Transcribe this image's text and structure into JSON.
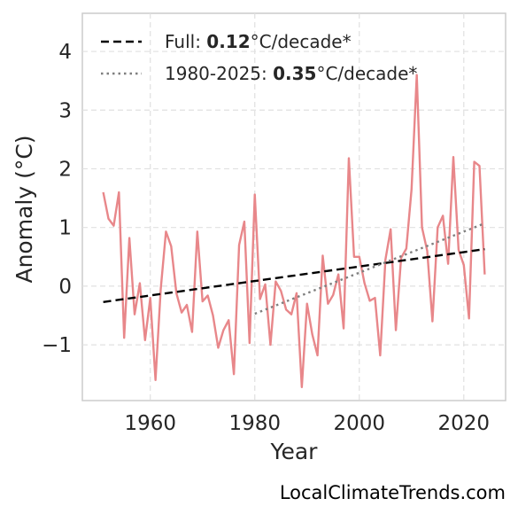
{
  "chart_data": {
    "type": "line",
    "xlabel": "Year",
    "ylabel": "Anomaly (°C)",
    "xlim": [
      1947,
      2028
    ],
    "ylim": [
      -1.95,
      4.65
    ],
    "xticks": [
      1960,
      1980,
      2000,
      2020
    ],
    "yticks": [
      4,
      3,
      2,
      1,
      0,
      -1
    ],
    "ytick_labels": [
      "4",
      "3",
      "2",
      "1",
      "0",
      "−1"
    ],
    "grid": true,
    "legend_position": "top-left",
    "series": [
      {
        "color": "#e8878a",
        "x": [
          1951,
          1952,
          1953,
          1954,
          1955,
          1956,
          1957,
          1958,
          1959,
          1960,
          1961,
          1962,
          1963,
          1964,
          1965,
          1966,
          1967,
          1968,
          1969,
          1970,
          1971,
          1972,
          1973,
          1974,
          1975,
          1976,
          1977,
          1978,
          1979,
          1980,
          1981,
          1982,
          1983,
          1984,
          1985,
          1986,
          1987,
          1988,
          1989,
          1990,
          1991,
          1992,
          1993,
          1994,
          1995,
          1996,
          1997,
          1998,
          1999,
          2000,
          2001,
          2002,
          2003,
          2004,
          2005,
          2006,
          2007,
          2008,
          2009,
          2010,
          2011,
          2012,
          2013,
          2014,
          2015,
          2016,
          2017,
          2018,
          2019,
          2020,
          2021,
          2022,
          2023,
          2024
        ],
        "y": [
          1.6,
          1.15,
          1.03,
          1.6,
          -0.88,
          0.82,
          -0.48,
          0.05,
          -0.92,
          -0.2,
          -1.6,
          -0.05,
          0.93,
          0.68,
          -0.12,
          -0.45,
          -0.32,
          -0.78,
          0.93,
          -0.26,
          -0.16,
          -0.5,
          -1.05,
          -0.75,
          -0.58,
          -1.5,
          0.7,
          1.1,
          -0.97,
          1.56,
          -0.22,
          0.03,
          -1.0,
          0.08,
          -0.08,
          -0.4,
          -0.48,
          -0.12,
          -1.72,
          -0.3,
          -0.82,
          -1.18,
          0.52,
          -0.3,
          -0.15,
          0.2,
          -0.72,
          2.18,
          0.5,
          0.5,
          0.05,
          -0.25,
          -0.2,
          -1.18,
          0.45,
          0.97,
          -0.75,
          0.48,
          0.64,
          1.65,
          3.6,
          1.0,
          0.6,
          -0.6,
          1.0,
          1.2,
          0.38,
          2.2,
          0.62,
          0.36,
          -0.55,
          2.12,
          2.05,
          0.2
        ]
      }
    ],
    "trends": [
      {
        "label_prefix": "Full: ",
        "label_value": "0.12",
        "label_suffix": "°C/decade*",
        "style": "dashed",
        "color": "#000000",
        "x": [
          1951,
          2024
        ],
        "y": [
          -0.27,
          0.63
        ]
      },
      {
        "label_prefix": "1980-2025: ",
        "label_value": "0.35",
        "label_suffix": "°C/decade*",
        "style": "dotted",
        "color": "#7f7f7f",
        "x": [
          1980,
          2024
        ],
        "y": [
          -0.47,
          1.07
        ]
      }
    ]
  },
  "source_text": "LocalClimateTrends.com"
}
